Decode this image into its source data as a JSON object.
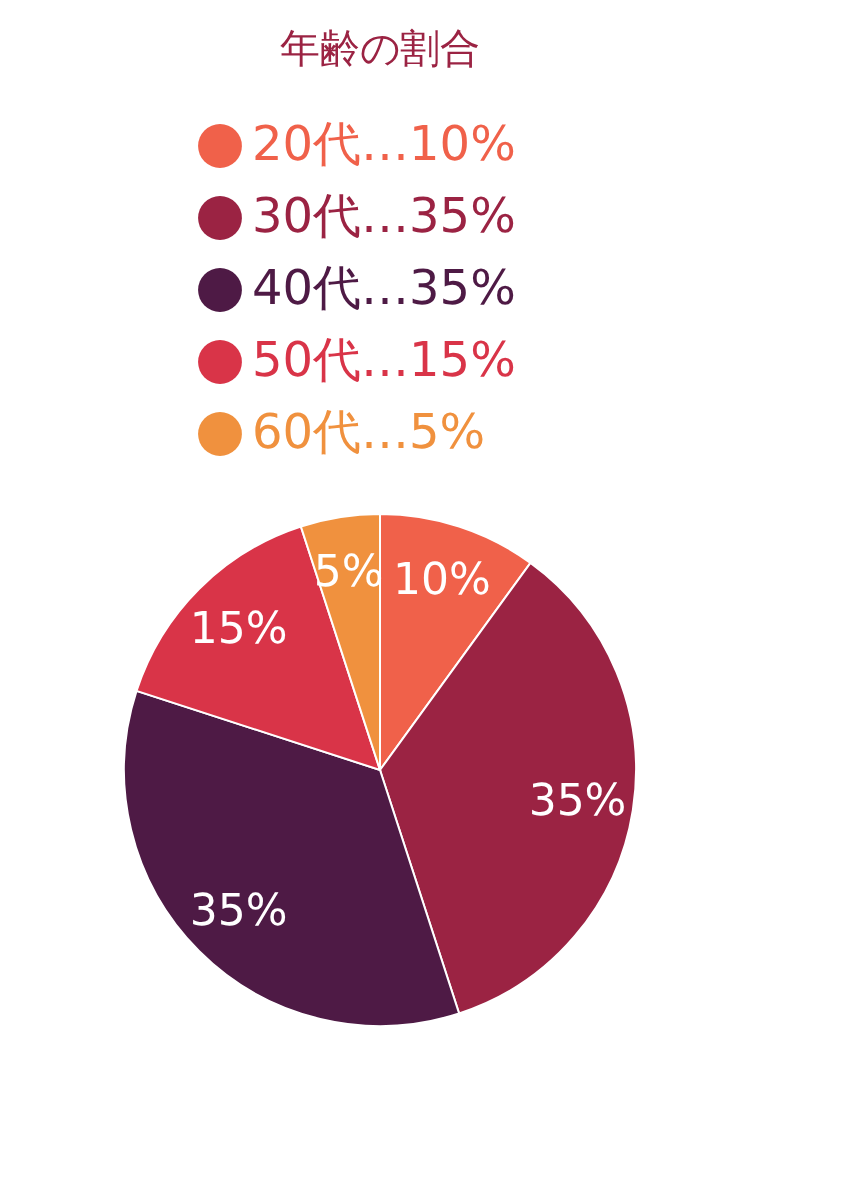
{
  "chart_data": {
    "type": "pie",
    "title": "年齢の割合",
    "categories": [
      "20代…10%",
      "30代…35%",
      "40代…35%",
      "50代…15%",
      "60代…5%"
    ],
    "values": [
      10,
      35,
      35,
      15,
      5
    ],
    "value_labels": [
      "10%",
      "35%",
      "35%",
      "15%",
      "5%"
    ],
    "colors": [
      "#f0614a",
      "#9b2343",
      "#4e1a45",
      "#d93448",
      "#f0913e"
    ],
    "legend": "top"
  }
}
